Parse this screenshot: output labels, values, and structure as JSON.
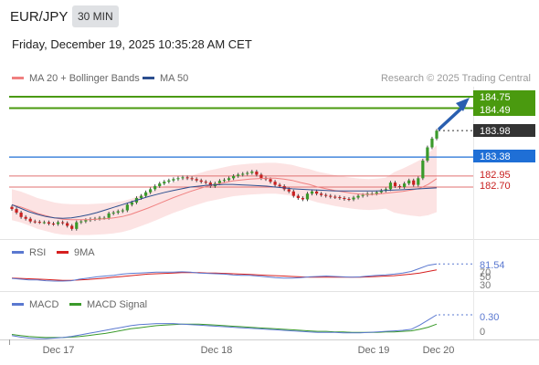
{
  "header": {
    "symbol": "EUR/JPY",
    "interval": "30 MIN",
    "datetime": "Friday, December 19, 2025 10:35:28 AM CET"
  },
  "legend": {
    "main": [
      {
        "label": "MA 20 + Bollinger Bands",
        "color": "#f08080"
      },
      {
        "label": "MA 50",
        "color": "#2c4f8f"
      }
    ],
    "rsi": [
      {
        "label": "RSI",
        "color": "#5a78d0"
      },
      {
        "label": "9MA",
        "color": "#d61f1f"
      }
    ],
    "macd": [
      {
        "label": "MACD",
        "color": "#5a78d0"
      },
      {
        "label": "MACD Signal",
        "color": "#3a9a2a"
      }
    ]
  },
  "copyright": "Research © 2025 Trading Central",
  "colors": {
    "resistance": "#4a9a0f",
    "pivot": "#1f6fd6",
    "support": "#e07070",
    "last_price": "#333333",
    "up": "#3a9a2a",
    "down": "#c82020"
  },
  "chart_data": {
    "type": "candlestick",
    "price_labels": {
      "r2": "184.75",
      "r1": "184.49",
      "last": "183.98",
      "pivot": "183.38",
      "s1": "182.95",
      "s2": "182.70"
    },
    "levels": {
      "r2": 184.75,
      "r1": 184.49,
      "pivot": 183.38,
      "s1": 182.95,
      "s2": 182.7,
      "last": 183.98
    },
    "x_labels": [
      "Dec 17",
      "Dec 18",
      "Dec 19",
      "Dec 20"
    ],
    "closes": [
      182.2,
      182.12,
      182.02,
      181.98,
      181.92,
      181.91,
      181.9,
      181.9,
      181.87,
      181.86,
      181.9,
      181.88,
      181.82,
      181.75,
      181.9,
      181.92,
      181.95,
      181.97,
      181.98,
      182.0,
      182.0,
      182.1,
      182.12,
      182.15,
      182.17,
      182.3,
      182.35,
      182.45,
      182.5,
      182.58,
      182.65,
      182.72,
      182.78,
      182.82,
      182.85,
      182.88,
      182.9,
      182.92,
      182.9,
      182.88,
      182.85,
      182.82,
      182.8,
      182.72,
      182.78,
      182.84,
      182.86,
      182.9,
      182.95,
      182.98,
      183.0,
      183.02,
      183.05,
      182.98,
      182.9,
      182.88,
      182.82,
      182.75,
      182.72,
      182.65,
      182.6,
      182.5,
      182.45,
      182.42,
      182.55,
      182.6,
      182.55,
      182.52,
      182.5,
      182.48,
      182.47,
      182.45,
      182.43,
      182.42,
      182.46,
      182.5,
      182.52,
      182.55,
      182.55,
      182.58,
      182.62,
      182.65,
      182.8,
      182.72,
      182.7,
      182.78,
      182.85,
      182.75,
      182.9,
      183.3,
      183.6,
      183.8,
      183.98
    ],
    "ma20": [
      182.3,
      182.25,
      182.18,
      182.1,
      182.05,
      182.0,
      181.97,
      181.96,
      181.96,
      181.96,
      181.97,
      181.98,
      182.0,
      182.03,
      182.08,
      182.15,
      182.22,
      182.3,
      182.38,
      182.46,
      182.53,
      182.6,
      182.66,
      182.72,
      182.76,
      182.8,
      182.84,
      182.86,
      182.88,
      182.89,
      182.9,
      182.9,
      182.88,
      182.85,
      182.8,
      182.76,
      182.7,
      182.66,
      182.62,
      182.59,
      182.56,
      182.54,
      182.53,
      182.54,
      182.56,
      182.58,
      182.6,
      182.63,
      182.67,
      182.76,
      182.89
    ],
    "ma50": [
      182.3,
      182.22,
      182.14,
      182.08,
      182.03,
      182.0,
      181.99,
      182.0,
      182.03,
      182.07,
      182.12,
      182.18,
      182.24,
      182.3,
      182.36,
      182.42,
      182.48,
      182.53,
      182.58,
      182.62,
      182.66,
      182.7,
      182.72,
      182.74,
      182.75,
      182.76,
      182.76,
      182.75,
      182.74,
      182.73,
      182.72,
      182.7,
      182.68,
      182.66,
      182.65,
      182.64,
      182.63,
      182.62,
      182.61,
      182.61,
      182.61,
      182.61,
      182.61,
      182.61,
      182.62,
      182.63,
      182.64,
      182.65,
      182.66,
      182.67,
      182.68
    ],
    "rsi": [
      44,
      42,
      40,
      40,
      38,
      37,
      37,
      38,
      42,
      45,
      48,
      50,
      52,
      55,
      57,
      58,
      59,
      60,
      60,
      60,
      61,
      60,
      58,
      57,
      56,
      55,
      53,
      52,
      52,
      50,
      48,
      46,
      45,
      45,
      46,
      48,
      49,
      50,
      49,
      48,
      47,
      48,
      50,
      52,
      53,
      55,
      58,
      62,
      70,
      78,
      81.54
    ],
    "rsi_ma": [
      45,
      44,
      43,
      42,
      41,
      40,
      39,
      39,
      40,
      41,
      43,
      45,
      47,
      49,
      51,
      53,
      55,
      56,
      57,
      58,
      59,
      59,
      59,
      58,
      58,
      57,
      56,
      55,
      54,
      53,
      52,
      51,
      50,
      49,
      48,
      47,
      47,
      47,
      47,
      47,
      47,
      47,
      48,
      49,
      50,
      51,
      53,
      55,
      58,
      62,
      66
    ],
    "rsi_ticks": [
      "70",
      "50",
      "30"
    ],
    "rsi_value": "81.54",
    "macd": [
      -0.1,
      -0.13,
      -0.15,
      -0.16,
      -0.16,
      -0.15,
      -0.14,
      -0.12,
      -0.09,
      -0.06,
      -0.03,
      0.0,
      0.03,
      0.06,
      0.09,
      0.11,
      0.12,
      0.13,
      0.13,
      0.13,
      0.12,
      0.11,
      0.1,
      0.09,
      0.08,
      0.07,
      0.06,
      0.05,
      0.04,
      0.03,
      0.02,
      0.01,
      0.0,
      -0.01,
      -0.02,
      -0.03,
      -0.04,
      -0.04,
      -0.04,
      -0.05,
      -0.05,
      -0.05,
      -0.04,
      -0.03,
      -0.02,
      -0.01,
      0.0,
      0.02,
      0.1,
      0.2,
      0.3
    ],
    "macd_signal": [
      -0.08,
      -0.1,
      -0.12,
      -0.13,
      -0.14,
      -0.14,
      -0.14,
      -0.13,
      -0.12,
      -0.1,
      -0.08,
      -0.06,
      -0.03,
      0.0,
      0.03,
      0.05,
      0.07,
      0.09,
      0.1,
      0.11,
      0.12,
      0.12,
      0.12,
      0.11,
      0.1,
      0.09,
      0.08,
      0.07,
      0.06,
      0.05,
      0.04,
      0.03,
      0.02,
      0.01,
      0.0,
      -0.01,
      -0.02,
      -0.02,
      -0.03,
      -0.03,
      -0.04,
      -0.04,
      -0.04,
      -0.04,
      -0.03,
      -0.03,
      -0.02,
      -0.01,
      0.02,
      0.06,
      0.12
    ],
    "macd_labels": [
      "0.30",
      "0"
    ]
  }
}
